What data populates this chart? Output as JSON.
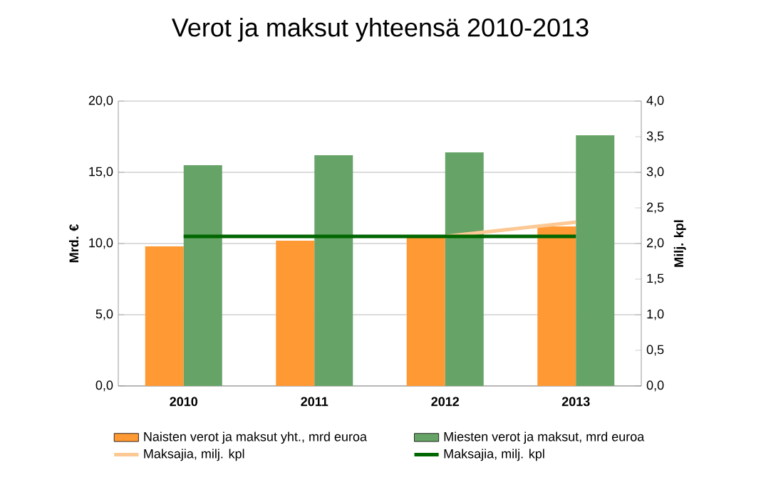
{
  "chart_data": {
    "type": "bar",
    "title": "Verot ja maksut yhteensä  2010-2013",
    "ylabel": "Mrd. €",
    "y2label": "Milj. kpl",
    "categories": [
      "2010",
      "2011",
      "2012",
      "2013"
    ],
    "series": [
      {
        "name": "Naisten verot ja maksut yht., mrd  euroa",
        "color": "#ff9933",
        "values": [
          9.8,
          10.2,
          10.5,
          11.2
        ]
      },
      {
        "name": "Miesten verot ja maksut, mrd  euroa",
        "color": "#66a366",
        "values": [
          15.5,
          16.2,
          16.4,
          17.6
        ]
      },
      {
        "name": "Maksajia, milj. kpl",
        "type": "line",
        "axis": "y2",
        "color": "#fcc894",
        "values": [
          null,
          null,
          2.1,
          2.3
        ]
      },
      {
        "name": "Maksajia, milj. kpl",
        "type": "line",
        "axis": "y2",
        "color": "#006600",
        "values": [
          2.1,
          2.1,
          2.1,
          2.1
        ]
      }
    ],
    "ylim": [
      0,
      20
    ],
    "yticks": [
      {
        "value": 0,
        "label": "0,0"
      },
      {
        "value": 5,
        "label": "5,0"
      },
      {
        "value": 10,
        "label": "10,0"
      },
      {
        "value": 15,
        "label": "15,0"
      },
      {
        "value": 20,
        "label": "20,0"
      }
    ],
    "y2lim": [
      0,
      4
    ],
    "y2ticks": [
      {
        "value": 0,
        "label": "0,0"
      },
      {
        "value": 0.5,
        "label": "0,5"
      },
      {
        "value": 1,
        "label": "1,0"
      },
      {
        "value": 1.5,
        "label": "1,5"
      },
      {
        "value": 2,
        "label": "2,0"
      },
      {
        "value": 2.5,
        "label": "2,5"
      },
      {
        "value": 3,
        "label": "3,0"
      },
      {
        "value": 3.5,
        "label": "3,5"
      },
      {
        "value": 4,
        "label": "4,0"
      }
    ],
    "grid": "y",
    "legend": "bottom"
  }
}
